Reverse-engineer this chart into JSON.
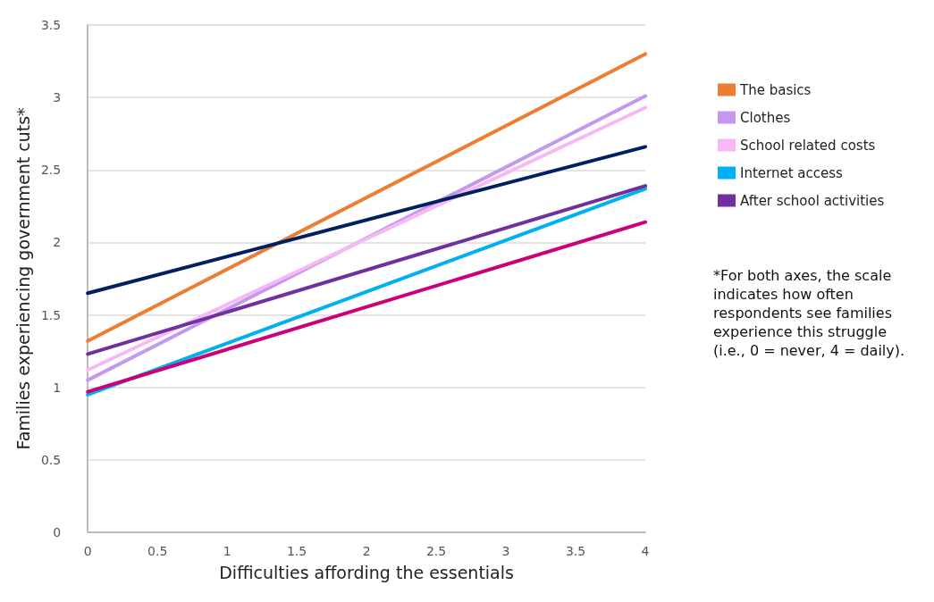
{
  "chart_data": {
    "type": "line",
    "xlabel": "Difficulties affording the essentials",
    "ylabel": "Families experiencing government cuts*",
    "x": [
      0,
      4
    ],
    "series": [
      {
        "name": "The basics",
        "color": "#ed7d31",
        "values": [
          1.32,
          3.3
        ]
      },
      {
        "name": "Clothes",
        "color": "#c299ee",
        "values": [
          1.05,
          3.01
        ]
      },
      {
        "name": "School related costs",
        "color": "#f7b8f5",
        "values": [
          1.12,
          2.93
        ]
      },
      {
        "name": "Internet access",
        "color": "#00b0f0",
        "values": [
          0.95,
          2.37
        ]
      },
      {
        "name": "After school activities",
        "color": "#7030a0",
        "values": [
          1.23,
          2.39
        ]
      },
      {
        "color": "#002060",
        "values": [
          1.65,
          2.66
        ]
      },
      {
        "color": "#cc0077",
        "values": [
          0.97,
          2.14
        ]
      }
    ],
    "xlim": [
      0,
      4
    ],
    "xticks": [
      0,
      0.5,
      1,
      1.5,
      2,
      2.5,
      3,
      3.5,
      4
    ],
    "ylim": [
      0,
      3.5
    ],
    "yticks": [
      0,
      0.5,
      1,
      1.5,
      2,
      2.5,
      3,
      3.5
    ],
    "grid": "y",
    "legend": "right",
    "marker": "none",
    "line_style": "solid",
    "annotations": [
      "*For both axes, the scale indicates how often respondents see families experience this struggle (i.e., 0 = never, 4 = daily)."
    ]
  }
}
